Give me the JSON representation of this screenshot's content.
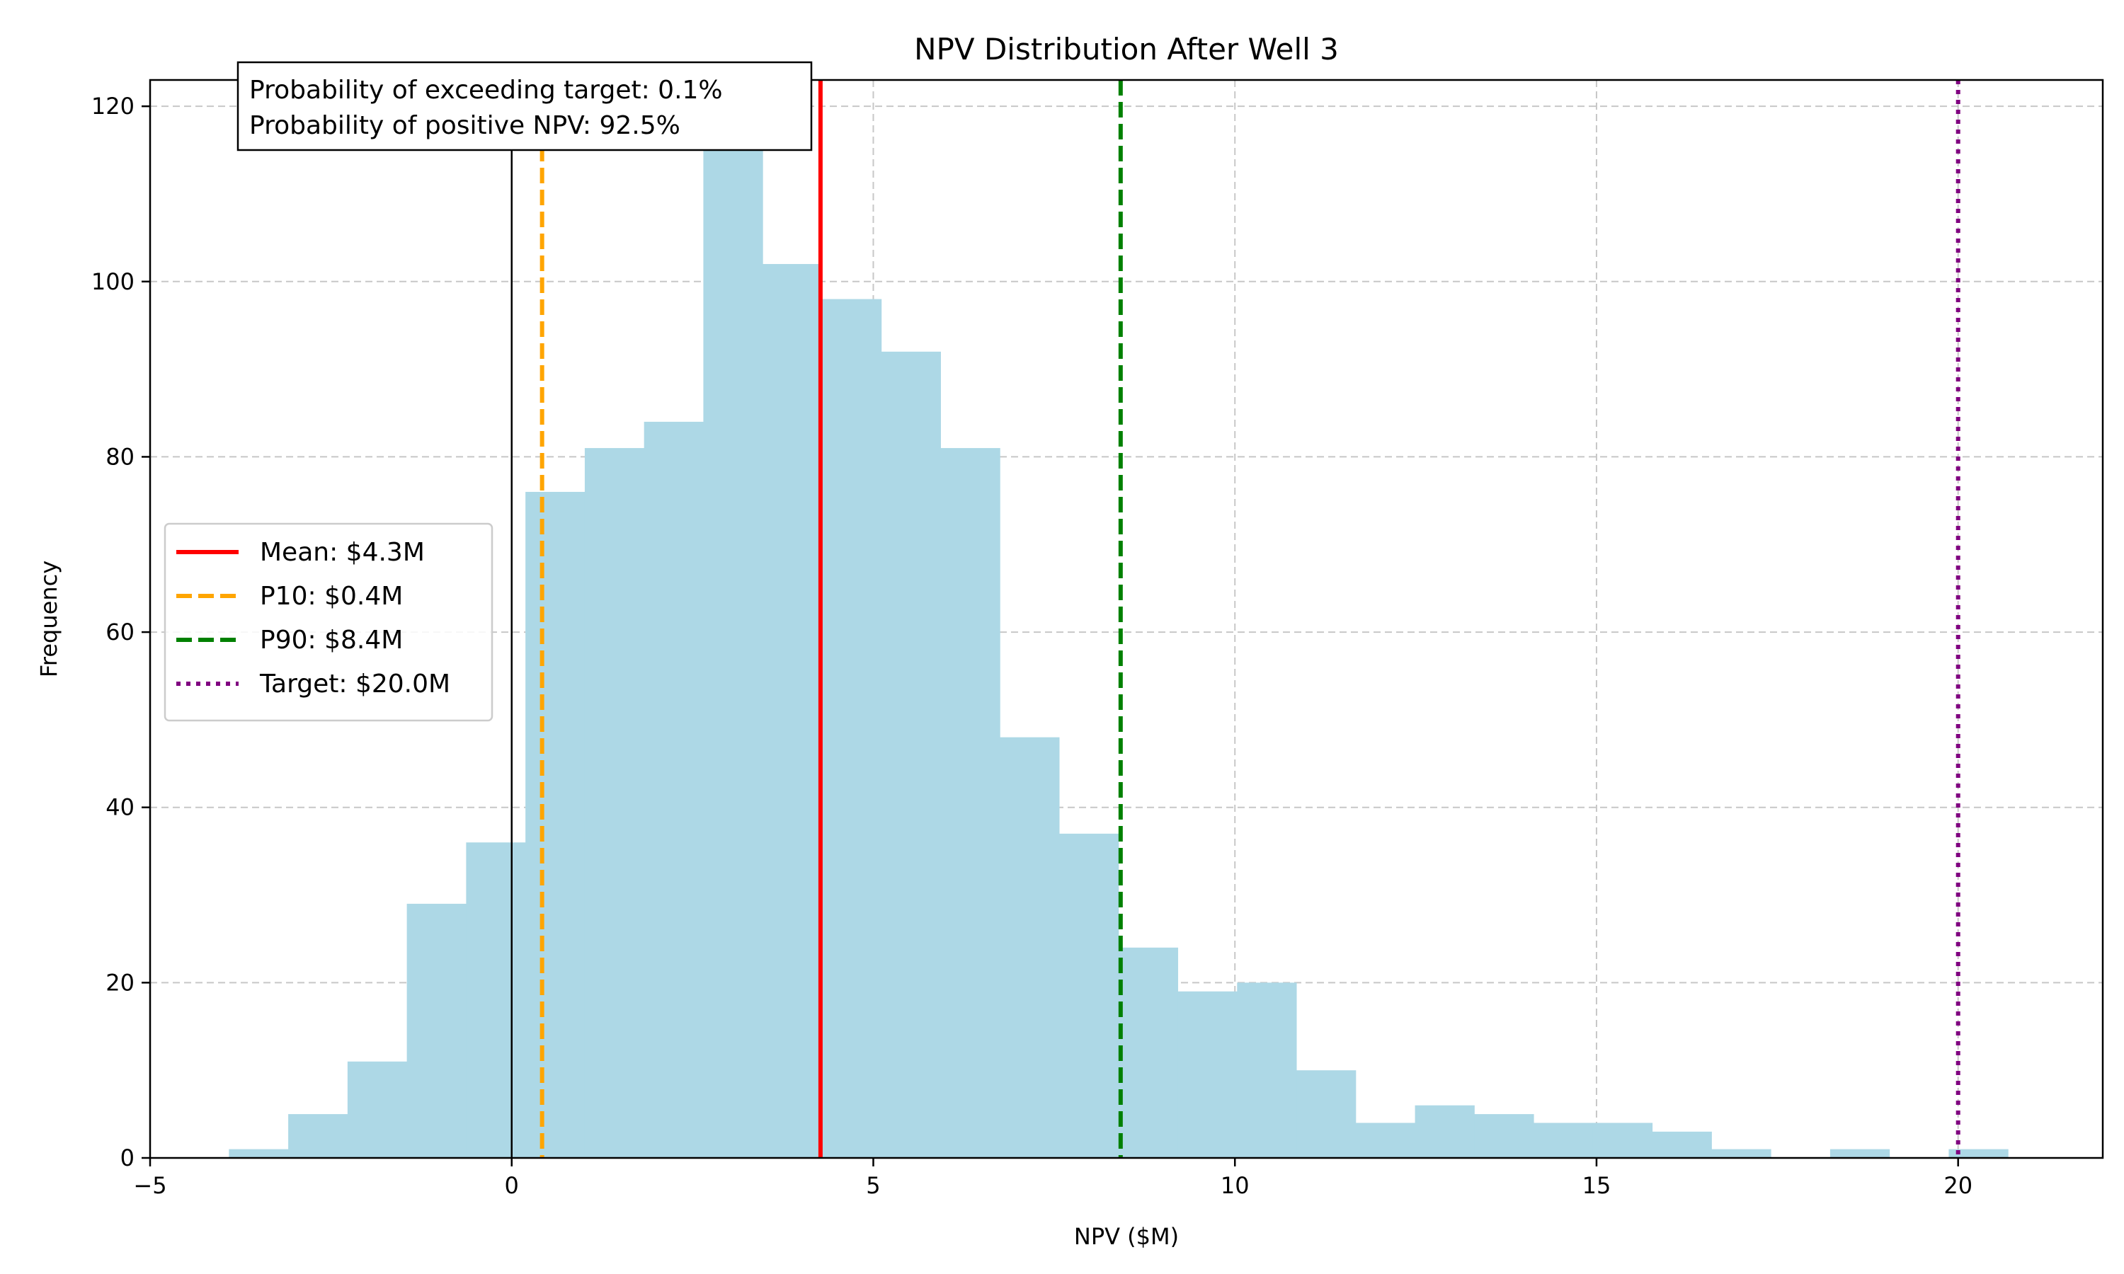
{
  "chart_data": {
    "type": "histogram",
    "title": "NPV Distribution After Well 3",
    "xlabel": "NPV ($M)",
    "ylabel": "Frequency",
    "xlim": [
      -5,
      22
    ],
    "ylim": [
      0,
      123
    ],
    "xticks": [
      -5,
      0,
      5,
      10,
      15,
      20
    ],
    "yticks": [
      0,
      20,
      40,
      60,
      80,
      100,
      120
    ],
    "grid": true,
    "bar_color": "#add8e6",
    "bins": [
      {
        "x0": -3.91,
        "x1": -3.09,
        "count": 1
      },
      {
        "x0": -3.09,
        "x1": -2.27,
        "count": 5
      },
      {
        "x0": -2.27,
        "x1": -1.45,
        "count": 11
      },
      {
        "x0": -1.45,
        "x1": -0.63,
        "count": 29
      },
      {
        "x0": -0.63,
        "x1": 0.19,
        "count": 36
      },
      {
        "x0": 0.19,
        "x1": 1.01,
        "count": 76
      },
      {
        "x0": 1.01,
        "x1": 1.83,
        "count": 81
      },
      {
        "x0": 1.83,
        "x1": 2.65,
        "count": 84
      },
      {
        "x0": 2.65,
        "x1": 3.47,
        "count": 117
      },
      {
        "x0": 3.47,
        "x1": 4.29,
        "count": 102
      },
      {
        "x0": 4.29,
        "x1": 5.11,
        "count": 98
      },
      {
        "x0": 5.11,
        "x1": 5.93,
        "count": 92
      },
      {
        "x0": 5.93,
        "x1": 6.75,
        "count": 81
      },
      {
        "x0": 6.75,
        "x1": 7.57,
        "count": 48
      },
      {
        "x0": 7.57,
        "x1": 8.39,
        "count": 37
      },
      {
        "x0": 8.39,
        "x1": 9.21,
        "count": 24
      },
      {
        "x0": 9.21,
        "x1": 10.03,
        "count": 19
      },
      {
        "x0": 10.03,
        "x1": 10.85,
        "count": 20
      },
      {
        "x0": 10.85,
        "x1": 11.67,
        "count": 10
      },
      {
        "x0": 11.67,
        "x1": 12.49,
        "count": 4
      },
      {
        "x0": 12.49,
        "x1": 13.31,
        "count": 6
      },
      {
        "x0": 13.31,
        "x1": 14.13,
        "count": 5
      },
      {
        "x0": 14.13,
        "x1": 14.95,
        "count": 4
      },
      {
        "x0": 14.95,
        "x1": 15.77,
        "count": 4
      },
      {
        "x0": 15.77,
        "x1": 16.59,
        "count": 3
      },
      {
        "x0": 16.59,
        "x1": 17.41,
        "count": 1
      },
      {
        "x0": 17.41,
        "x1": 18.23,
        "count": 0
      },
      {
        "x0": 18.23,
        "x1": 19.05,
        "count": 1
      },
      {
        "x0": 19.05,
        "x1": 19.87,
        "count": 0
      },
      {
        "x0": 19.87,
        "x1": 20.69,
        "count": 1
      }
    ],
    "reference_lines": [
      {
        "name": "zero",
        "label": "",
        "x": 0,
        "color": "#000000",
        "style": "solid",
        "in_legend": false
      },
      {
        "name": "mean",
        "label": "Mean: $4.3M",
        "x": 4.27,
        "color": "#ff0000",
        "style": "solid",
        "in_legend": true
      },
      {
        "name": "p10",
        "label": "P10: $0.4M",
        "x": 0.42,
        "color": "#ffa500",
        "style": "dashed",
        "in_legend": true
      },
      {
        "name": "p90",
        "label": "P90: $8.4M",
        "x": 8.42,
        "color": "#008000",
        "style": "dashed",
        "in_legend": true
      },
      {
        "name": "target",
        "label": "Target: $20.0M",
        "x": 20.0,
        "color": "#800080",
        "style": "dotted",
        "in_legend": true
      }
    ],
    "legend_position": "center-left",
    "annotation": {
      "lines": [
        "Probability of exceeding target: 0.1%",
        "Probability of positive NPV: 92.5%"
      ],
      "position": "top-left"
    }
  }
}
